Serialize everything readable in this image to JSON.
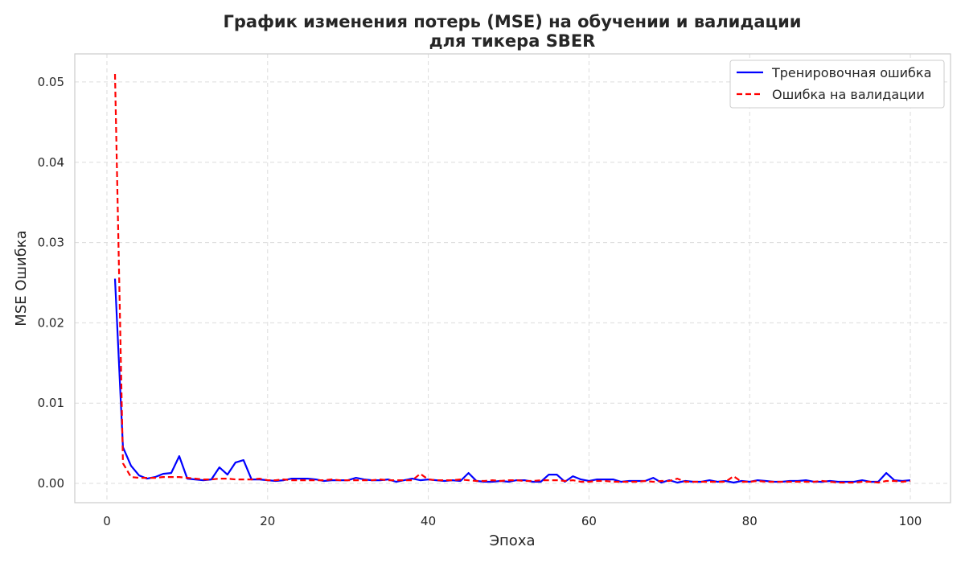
{
  "chart_data": {
    "type": "line",
    "title_lines": [
      "График изменения потерь (MSE) на обучении и валидации",
      "для тикера SBER"
    ],
    "xlabel": "Эпоха",
    "ylabel": "MSE Ошибка",
    "xlim": [
      -4,
      105
    ],
    "ylim": [
      -0.0024,
      0.0535
    ],
    "xticks": [
      0,
      20,
      40,
      60,
      80,
      100
    ],
    "xtick_labels": [
      "0",
      "20",
      "40",
      "60",
      "80",
      "100"
    ],
    "yticks": [
      0,
      0.01,
      0.02,
      0.03,
      0.04,
      0.05
    ],
    "ytick_labels": [
      "0.00",
      "0.01",
      "0.02",
      "0.03",
      "0.04",
      "0.05"
    ],
    "grid": true,
    "legend_position": "top-right",
    "series": [
      {
        "name": "Тренировочная ошибка",
        "color": "#0000ff",
        "style": "solid",
        "x": [
          1,
          2,
          3,
          4,
          5,
          6,
          7,
          8,
          9,
          10,
          11,
          12,
          13,
          14,
          15,
          16,
          17,
          18,
          19,
          20,
          21,
          22,
          23,
          24,
          25,
          26,
          27,
          28,
          29,
          30,
          31,
          32,
          33,
          34,
          35,
          36,
          37,
          38,
          39,
          40,
          41,
          42,
          43,
          44,
          45,
          46,
          47,
          48,
          49,
          50,
          51,
          52,
          53,
          54,
          55,
          56,
          57,
          58,
          59,
          60,
          61,
          62,
          63,
          64,
          65,
          66,
          67,
          68,
          69,
          70,
          71,
          72,
          73,
          74,
          75,
          76,
          77,
          78,
          79,
          80,
          81,
          82,
          83,
          84,
          85,
          86,
          87,
          88,
          89,
          90,
          91,
          92,
          93,
          94,
          95,
          96,
          97,
          98,
          99,
          100
        ],
        "values": [
          0.0255,
          0.0045,
          0.0022,
          0.001,
          0.0006,
          0.0008,
          0.0012,
          0.0013,
          0.0034,
          0.0006,
          0.0005,
          0.0004,
          0.0005,
          0.002,
          0.0011,
          0.0026,
          0.0029,
          0.0005,
          0.0005,
          0.0004,
          0.0003,
          0.0004,
          0.0006,
          0.0006,
          0.0006,
          0.0005,
          0.0003,
          0.0004,
          0.0004,
          0.0004,
          0.0007,
          0.0005,
          0.0004,
          0.0004,
          0.0005,
          0.0002,
          0.0004,
          0.0006,
          0.0004,
          0.0005,
          0.0004,
          0.0003,
          0.0004,
          0.0003,
          0.0013,
          0.0003,
          0.0002,
          0.0002,
          0.0003,
          0.0002,
          0.0004,
          0.0004,
          0.0002,
          0.0002,
          0.0011,
          0.0011,
          0.0002,
          0.0009,
          0.0005,
          0.0003,
          0.0005,
          0.0005,
          0.0005,
          0.0002,
          0.0003,
          0.0003,
          0.0003,
          0.0007,
          0.0001,
          0.0004,
          0.0001,
          0.0003,
          0.0002,
          0.0002,
          0.0004,
          0.0002,
          0.0003,
          0.0001,
          0.0003,
          0.0002,
          0.0004,
          0.0003,
          0.0002,
          0.0002,
          0.0003,
          0.0003,
          0.0004,
          0.0002,
          0.0002,
          0.0003,
          0.0002,
          0.0002,
          0.0002,
          0.0004,
          0.0002,
          0.0002,
          0.0013,
          0.0004,
          0.0003,
          0.0004
        ]
      },
      {
        "name": "Ошибка на валидации",
        "color": "#ff0000",
        "style": "dashed",
        "x": [
          1,
          2,
          3,
          4,
          5,
          6,
          7,
          8,
          9,
          10,
          11,
          12,
          13,
          14,
          15,
          16,
          17,
          18,
          19,
          20,
          21,
          22,
          23,
          24,
          25,
          26,
          27,
          28,
          29,
          30,
          31,
          32,
          33,
          34,
          35,
          36,
          37,
          38,
          39,
          40,
          41,
          42,
          43,
          44,
          45,
          46,
          47,
          48,
          49,
          50,
          51,
          52,
          53,
          54,
          55,
          56,
          57,
          58,
          59,
          60,
          61,
          62,
          63,
          64,
          65,
          66,
          67,
          68,
          69,
          70,
          71,
          72,
          73,
          74,
          75,
          76,
          77,
          78,
          79,
          80,
          81,
          82,
          83,
          84,
          85,
          86,
          87,
          88,
          89,
          90,
          91,
          92,
          93,
          94,
          95,
          96,
          97,
          98,
          99,
          100
        ],
        "values": [
          0.051,
          0.0025,
          0.0008,
          0.0007,
          0.0007,
          0.0007,
          0.0008,
          0.0008,
          0.0008,
          0.0007,
          0.0006,
          0.0005,
          0.0005,
          0.0006,
          0.0006,
          0.0005,
          0.0005,
          0.0005,
          0.0006,
          0.0004,
          0.0004,
          0.0005,
          0.0004,
          0.0004,
          0.0004,
          0.0004,
          0.0004,
          0.0005,
          0.0004,
          0.0004,
          0.0004,
          0.0004,
          0.0004,
          0.0005,
          0.0004,
          0.0004,
          0.0004,
          0.0004,
          0.0012,
          0.0005,
          0.0004,
          0.0004,
          0.0004,
          0.0005,
          0.0004,
          0.0003,
          0.0003,
          0.0004,
          0.0003,
          0.0004,
          0.0004,
          0.0003,
          0.0003,
          0.0004,
          0.0004,
          0.0004,
          0.0003,
          0.0004,
          0.0002,
          0.0002,
          0.0003,
          0.0003,
          0.0002,
          0.0002,
          0.0002,
          0.0002,
          0.0003,
          0.0002,
          0.0003,
          0.0003,
          0.0006,
          0.0002,
          0.0002,
          0.0002,
          0.0002,
          0.0002,
          0.0002,
          0.0009,
          0.0002,
          0.0002,
          0.0003,
          0.0002,
          0.0002,
          0.0002,
          0.0002,
          0.0002,
          0.0002,
          0.0002,
          0.0003,
          0.0002,
          0.0001,
          0.0001,
          0.0001,
          0.0002,
          0.0002,
          0.0001,
          0.0003,
          0.0003,
          0.0002,
          0.0003
        ]
      }
    ]
  }
}
